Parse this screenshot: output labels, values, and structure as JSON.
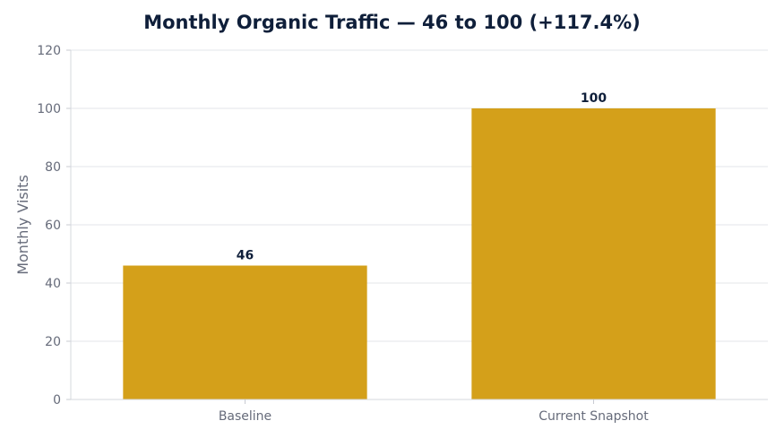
{
  "chart_data": {
    "type": "bar",
    "title": "Monthly Organic Traffic — 46 to 100 (+117.4%)",
    "xlabel": "",
    "ylabel": "Monthly Visits",
    "categories": [
      "Baseline",
      "Current Snapshot"
    ],
    "values": [
      46,
      100
    ],
    "data_labels": [
      "46",
      "100"
    ],
    "ylim": [
      0,
      120
    ],
    "yticks": [
      0,
      20,
      40,
      60,
      80,
      100,
      120
    ],
    "grid": true,
    "bar_color": "#D4A01A",
    "grid_color": "#e3e5ea",
    "text_color": "#666b7a",
    "title_color": "#0f1f3a"
  }
}
